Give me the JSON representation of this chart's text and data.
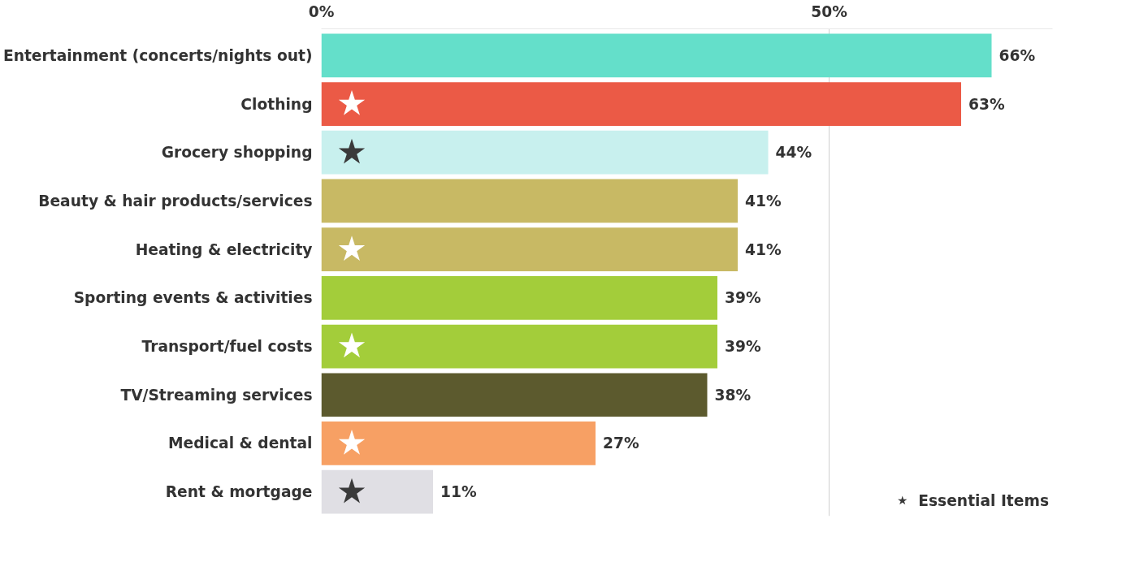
{
  "chart_data": {
    "type": "bar",
    "orientation": "horizontal",
    "categories": [
      "Entertainment (concerts/nights out)",
      "Clothing",
      "Grocery shopping",
      "Beauty & hair products/services",
      "Heating & electricity",
      "Sporting events & activities",
      "Transport/fuel costs",
      "TV/Streaming services",
      "Medical & dental",
      "Rent & mortgage"
    ],
    "xlim": [
      0,
      72
    ],
    "xticks": [
      {
        "value": 0,
        "label": "0%"
      },
      {
        "value": 50,
        "label": "50%"
      }
    ],
    "grid": "x",
    "legend": "bottom right",
    "series": [
      {
        "type": "bar",
        "colors": [
          "#64dfca",
          "#eb5a46",
          "#c8f0ee",
          "#c8b964",
          "#c8b964",
          "#a3cd3a",
          "#a3cd3a",
          "#5c5a2e",
          "#f7a064",
          "#e0dfe4"
        ],
        "values": [
          66,
          63,
          44,
          41,
          41,
          39,
          39,
          38,
          27,
          11
        ],
        "value_labels": [
          "66%",
          "63%",
          "44%",
          "41%",
          "41%",
          "39%",
          "39%",
          "38%",
          "27%",
          "11%"
        ]
      },
      {
        "type": "scatter",
        "name": "Essential Items",
        "marker": "star",
        "color": "#3a3a3a",
        "x": [
          "Entertainment (concerts/nights out)",
          "Clothing",
          "Grocery shopping",
          "Beauty & hair products/services",
          "Heating & electricity",
          "Sporting events & activities",
          "Transport/fuel costs",
          "TV/Streaming services",
          "Medical & dental",
          "Rent & mortgage"
        ],
        "colors": [
          null,
          "#ffffff",
          "#3a3a3a",
          null,
          "#ffffff",
          null,
          "#ffffff",
          null,
          "#ffffff",
          "#3a3a3a"
        ],
        "values": [
          null,
          3,
          3,
          null,
          3,
          null,
          3,
          null,
          3,
          3
        ]
      }
    ]
  }
}
